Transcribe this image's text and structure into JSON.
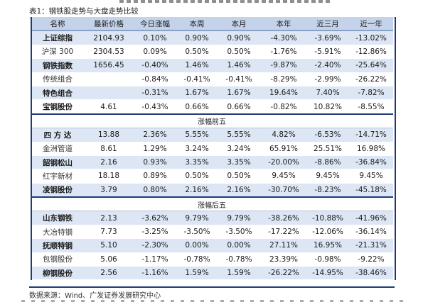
{
  "caption": "表1：钢铁股走势与大盘走势比较",
  "columns": [
    "名称",
    "最新价格",
    "今日涨幅",
    "本周",
    "本月",
    "本年",
    "近三月",
    "近一年"
  ],
  "index_rows": [
    {
      "name": "上证综指",
      "price": "2104.93",
      "today": "0.10%",
      "week": "0.90%",
      "month": "0.90%",
      "year": "-4.30%",
      "m3": "-3.69%",
      "y1": "-13.02%",
      "bold": true,
      "shade": true
    },
    {
      "name": "沪深 300",
      "price": "2304.53",
      "today": "0.09%",
      "week": "0.50%",
      "month": "0.50%",
      "year": "-1.76%",
      "m3": "-5.91%",
      "y1": "-12.86%",
      "bold": false,
      "shade": false
    },
    {
      "name": "钢铁指数",
      "price": "1656.45",
      "today": "-0.40%",
      "week": "1.46%",
      "month": "1.46%",
      "year": "-9.87%",
      "m3": "-2.40%",
      "y1": "-25.64%",
      "bold": true,
      "shade": true
    },
    {
      "name": "传统组合",
      "price": "",
      "today": "-0.84%",
      "week": "-0.41%",
      "month": "-0.41%",
      "year": "-8.29%",
      "m3": "-2.99%",
      "y1": "-26.22%",
      "bold": false,
      "shade": false
    },
    {
      "name": "特色组合",
      "price": "",
      "today": "-0.31%",
      "week": "1.67%",
      "month": "1.67%",
      "year": "19.64%",
      "m3": "7.40%",
      "y1": "-7.82%",
      "bold": true,
      "shade": true
    },
    {
      "name": "宝钢股份",
      "price": "4.61",
      "today": "-0.43%",
      "week": "0.66%",
      "month": "0.66%",
      "year": "-0.82%",
      "m3": "10.82%",
      "y1": "-8.55%",
      "bold": true,
      "shade": false
    }
  ],
  "gainers_title": "涨幅前五",
  "gainers": [
    {
      "name": "四 方 达",
      "price": "13.88",
      "today": "2.36%",
      "week": "5.55%",
      "month": "5.55%",
      "year": "4.82%",
      "m3": "-6.53%",
      "y1": "-14.71%",
      "bold": true,
      "shade": true
    },
    {
      "name": "金洲管道",
      "price": "8.61",
      "today": "1.29%",
      "week": "3.24%",
      "month": "3.24%",
      "year": "65.91%",
      "m3": "25.51%",
      "y1": "16.98%",
      "bold": false,
      "shade": false
    },
    {
      "name": "韶钢松山",
      "price": "2.16",
      "today": "0.93%",
      "week": "3.35%",
      "month": "3.35%",
      "year": "-20.00%",
      "m3": "-8.86%",
      "y1": "-36.84%",
      "bold": true,
      "shade": true
    },
    {
      "name": "红宇新材",
      "price": "18.18",
      "today": "0.89%",
      "week": "0.50%",
      "month": "0.50%",
      "year": "9.45%",
      "m3": "9.45%",
      "y1": "9.45%",
      "bold": false,
      "shade": false
    },
    {
      "name": "凌钢股份",
      "price": "3.79",
      "today": "0.80%",
      "week": "2.16%",
      "month": "2.16%",
      "year": "-30.70%",
      "m3": "-8.23%",
      "y1": "-45.18%",
      "bold": true,
      "shade": true
    }
  ],
  "losers_title": "涨幅后五",
  "losers": [
    {
      "name": "山东钢铁",
      "price": "2.13",
      "today": "-3.62%",
      "week": "9.79%",
      "month": "9.79%",
      "year": "-38.26%",
      "m3": "-10.88%",
      "y1": "-41.96%",
      "bold": true,
      "shade": true
    },
    {
      "name": "大冶特钢",
      "price": "7.73",
      "today": "-3.25%",
      "week": "-3.50%",
      "month": "-3.50%",
      "year": "-17.22%",
      "m3": "-12.06%",
      "y1": "-36.14%",
      "bold": false,
      "shade": false
    },
    {
      "name": "抚顺特钢",
      "price": "5.10",
      "today": "-2.30%",
      "week": "0.00%",
      "month": "0.00%",
      "year": "27.11%",
      "m3": "16.95%",
      "y1": "-21.31%",
      "bold": true,
      "shade": true
    },
    {
      "name": "包钢股份",
      "price": "5.06",
      "today": "-1.17%",
      "week": "-0.78%",
      "month": "-0.78%",
      "year": "23.39%",
      "m3": "-0.98%",
      "y1": "-9.22%",
      "bold": false,
      "shade": false
    },
    {
      "name": "柳钢股份",
      "price": "2.56",
      "today": "-1.16%",
      "week": "1.59%",
      "month": "1.59%",
      "year": "-26.22%",
      "m3": "-14.95%",
      "y1": "-38.46%",
      "bold": true,
      "shade": true
    }
  ],
  "footer": "数据来源：Wind、广发证券发展研究中心"
}
